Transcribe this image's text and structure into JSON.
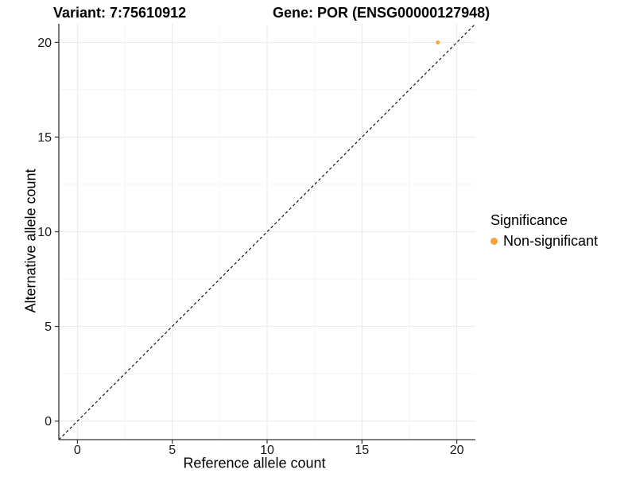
{
  "chart_data": {
    "type": "scatter",
    "title_left": "Variant: 7:75610912",
    "title_right": "Gene: POR (ENSG00000127948)",
    "xlabel": "Reference allele count",
    "ylabel": "Alternative allele count",
    "xlim": [
      -0.98,
      20.98
    ],
    "ylim": [
      -0.98,
      20.98
    ],
    "x_ticks": [
      0,
      5,
      10,
      15,
      20
    ],
    "y_ticks": [
      0,
      5,
      10,
      15,
      20
    ],
    "x_minor_ticks": [
      2.5,
      7.5,
      12.5,
      17.5
    ],
    "y_minor_ticks": [
      2.5,
      7.5,
      12.5,
      17.5
    ],
    "grid": true,
    "legend_position": "right",
    "legend_title": "Significance",
    "series": [
      {
        "name": "Non-significant",
        "color": "#F9A23C",
        "points": [
          {
            "x": 19,
            "y": 20
          }
        ]
      }
    ],
    "reference_line": {
      "type": "identity",
      "style": "dashed",
      "color": "#000000"
    },
    "style": {
      "axis_color": "#333333",
      "tick_label_color": "#1a1a1a",
      "grid_major_color": "#e9e9e9",
      "grid_minor_color": "#f4f4f4",
      "background": "#ffffff"
    }
  }
}
